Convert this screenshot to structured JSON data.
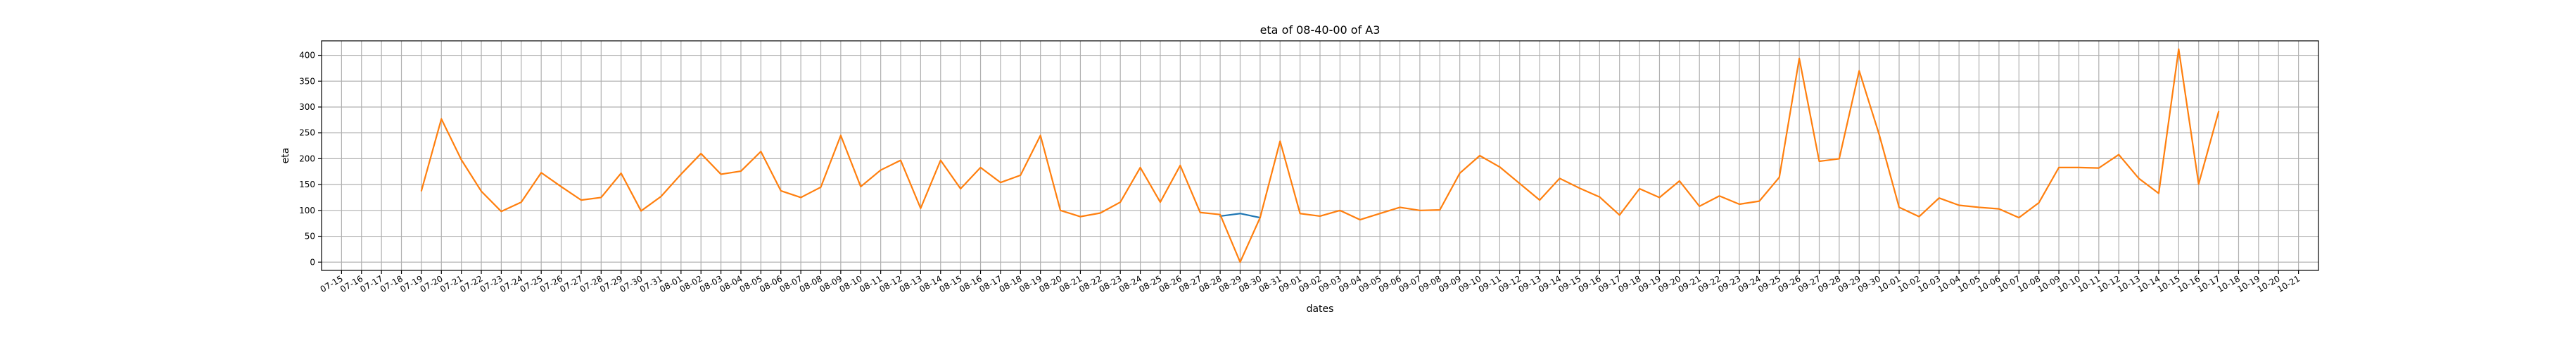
{
  "chart_data": {
    "type": "line",
    "title": "eta of 08-40-00 of A3",
    "xlabel": "dates",
    "ylabel": "eta",
    "ylim": [
      -16,
      428
    ],
    "yticks": [
      0,
      50,
      100,
      150,
      200,
      250,
      300,
      350,
      400
    ],
    "grid": true,
    "x_ticks": [
      "07-15",
      "07-16",
      "07-17",
      "07-18",
      "07-19",
      "07-20",
      "07-21",
      "07-22",
      "07-23",
      "07-24",
      "07-25",
      "07-26",
      "07-27",
      "07-28",
      "07-29",
      "07-30",
      "07-31",
      "08-01",
      "08-02",
      "08-03",
      "08-04",
      "08-05",
      "08-06",
      "08-07",
      "08-08",
      "08-09",
      "08-10",
      "08-11",
      "08-12",
      "08-13",
      "08-14",
      "08-15",
      "08-16",
      "08-17",
      "08-18",
      "08-19",
      "08-20",
      "08-21",
      "08-22",
      "08-23",
      "08-24",
      "08-25",
      "08-26",
      "08-27",
      "08-28",
      "08-29",
      "08-30",
      "08-31",
      "09-01",
      "09-02",
      "09-03",
      "09-04",
      "09-05",
      "09-06",
      "09-07",
      "09-08",
      "09-09",
      "09-10",
      "09-11",
      "09-12",
      "09-13",
      "09-14",
      "09-15",
      "09-16",
      "09-17",
      "09-18",
      "09-19",
      "09-20",
      "09-21",
      "09-22",
      "09-23",
      "09-24",
      "09-25",
      "09-26",
      "09-27",
      "09-28",
      "09-29",
      "09-30",
      "10-01",
      "10-02",
      "10-03",
      "10-04",
      "10-05",
      "10-06",
      "10-07",
      "10-08",
      "10-09",
      "10-10",
      "10-11",
      "10-12",
      "10-13",
      "10-14",
      "10-15",
      "10-16",
      "10-17",
      "10-18",
      "10-19",
      "10-20",
      "10-21"
    ],
    "series": [
      {
        "color": "#1f77b4",
        "x": [
          "08-28",
          "08-29",
          "08-30"
        ],
        "values": [
          89,
          94,
          86
        ]
      },
      {
        "color": "#ff7f0e",
        "x": [
          "07-19",
          "07-20",
          "07-21",
          "07-22",
          "07-23",
          "07-24",
          "07-25",
          "07-26",
          "07-27",
          "07-28",
          "07-29",
          "07-30",
          "07-31",
          "08-01",
          "08-02",
          "08-03",
          "08-04",
          "08-05",
          "08-06",
          "08-07",
          "08-08",
          "08-09",
          "08-10",
          "08-11",
          "08-12",
          "08-13",
          "08-14",
          "08-15",
          "08-16",
          "08-17",
          "08-18",
          "08-19",
          "08-20",
          "08-21",
          "08-22",
          "08-23",
          "08-24",
          "08-25",
          "08-26",
          "08-27",
          "08-28",
          "08-29",
          "08-30",
          "08-31",
          "09-01",
          "09-02",
          "09-03",
          "09-04",
          "09-05",
          "09-06",
          "09-07",
          "09-08",
          "09-09",
          "09-10",
          "09-11",
          "09-12",
          "09-13",
          "09-14",
          "09-15",
          "09-16",
          "09-17",
          "09-18",
          "09-19",
          "09-20",
          "09-21",
          "09-22",
          "09-23",
          "09-24",
          "09-25",
          "09-26",
          "09-27",
          "09-28",
          "09-29",
          "09-30",
          "10-01",
          "10-02",
          "10-03",
          "10-04",
          "10-05",
          "10-06",
          "10-07",
          "10-08",
          "10-09",
          "10-10",
          "10-11",
          "10-12",
          "10-13",
          "10-14",
          "10-15",
          "10-16",
          "10-17"
        ],
        "values": [
          138,
          277,
          198,
          137,
          98,
          116,
          173,
          146,
          120,
          125,
          172,
          99,
          127,
          170,
          210,
          170,
          176,
          214,
          138,
          125,
          145,
          245,
          146,
          178,
          197,
          104,
          197,
          142,
          183,
          154,
          168,
          245,
          100,
          88,
          95,
          116,
          183,
          116,
          187,
          96,
          92,
          0,
          86,
          234,
          94,
          89,
          100,
          82,
          94,
          106,
          100,
          101,
          172,
          206,
          184,
          152,
          120,
          162,
          143,
          126,
          91,
          142,
          125,
          157,
          108,
          128,
          112,
          118,
          164,
          394,
          195,
          200,
          370,
          247,
          106,
          88,
          124,
          110,
          106,
          103,
          86,
          115,
          183,
          183,
          182,
          208,
          162,
          133,
          412,
          151,
          291
        ]
      }
    ]
  }
}
